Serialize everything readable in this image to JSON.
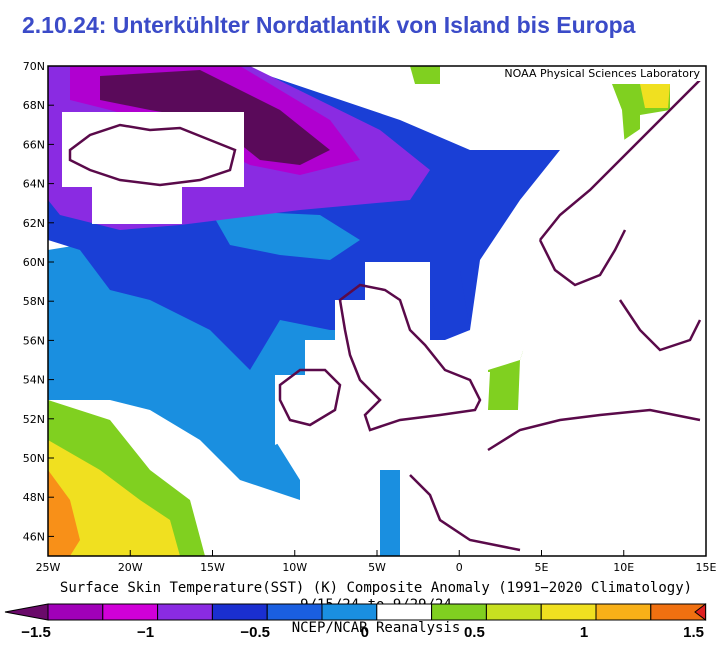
{
  "title": "2.10.24: Unterkühlter Nordatlantik von Island bis Europa",
  "map": {
    "credit": "NOAA Physical Sciences Laboratory",
    "lat_labels": [
      "70N",
      "68N",
      "66N",
      "64N",
      "62N",
      "60N",
      "58N",
      "56N",
      "54N",
      "52N",
      "50N",
      "48N",
      "46N"
    ],
    "lon_labels": [
      "25W",
      "20W",
      "15W",
      "10W",
      "5W",
      "0",
      "5E",
      "10E",
      "15E"
    ],
    "caption": "Surface Skin Temperature(SST) (K) Composite Anomaly (1991−2020 Climatology)",
    "dates": "9/15/24  to 9/29/24",
    "source": "NCEP/NCAR Reanalysis"
  },
  "colorbar": {
    "labels": [
      "−1.5",
      "−1",
      "−0.5",
      "0",
      "0.5",
      "1",
      "1.5"
    ]
  }
}
